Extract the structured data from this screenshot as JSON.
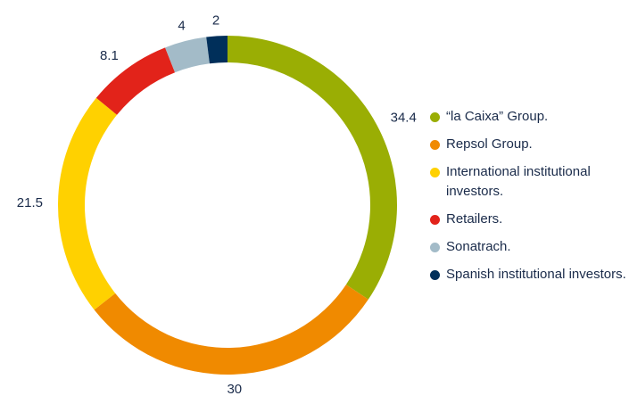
{
  "chart_data": {
    "type": "donut",
    "categories": [
      "“la Caixa” Group.",
      "Repsol Group.",
      "International institutional investors.",
      "Retailers.",
      "Sonatrach.",
      "Spanish institutional investors."
    ],
    "values": [
      34.4,
      30,
      21.5,
      8.1,
      4,
      2
    ],
    "colors": [
      "#9aae04",
      "#f08a00",
      "#ffd100",
      "#e2231a",
      "#a3bbc8",
      "#002f5a"
    ],
    "legend": "right"
  }
}
